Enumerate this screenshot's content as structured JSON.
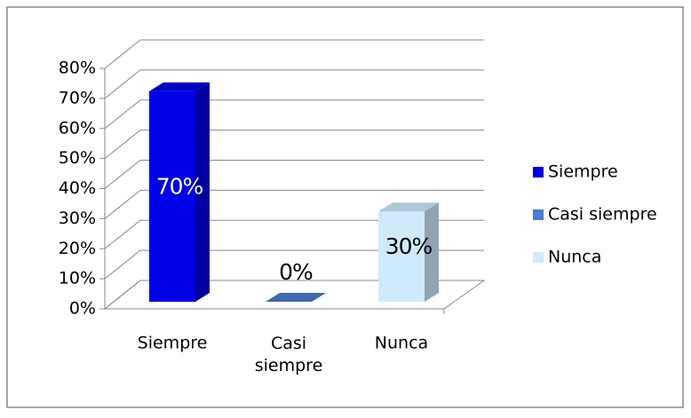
{
  "chart_data": {
    "type": "bar3d",
    "categories": [
      "Siempre",
      "Casi siempre",
      "Nunca"
    ],
    "values": [
      70,
      0,
      30
    ],
    "value_labels": [
      "70%",
      "0%",
      "30%"
    ],
    "colors": [
      "#0000e6",
      "#4a7bd0",
      "#cfeafb"
    ],
    "ylim": [
      0,
      80
    ],
    "yticks": [
      {
        "value": 0,
        "label": "0%"
      },
      {
        "value": 10,
        "label": "10%"
      },
      {
        "value": 20,
        "label": "20%"
      },
      {
        "value": 30,
        "label": "30%"
      },
      {
        "value": 40,
        "label": "40%"
      },
      {
        "value": 50,
        "label": "50%"
      },
      {
        "value": 60,
        "label": "60%"
      },
      {
        "value": 70,
        "label": "70%"
      },
      {
        "value": 80,
        "label": "80%"
      }
    ],
    "grid": true,
    "legend": "right"
  }
}
